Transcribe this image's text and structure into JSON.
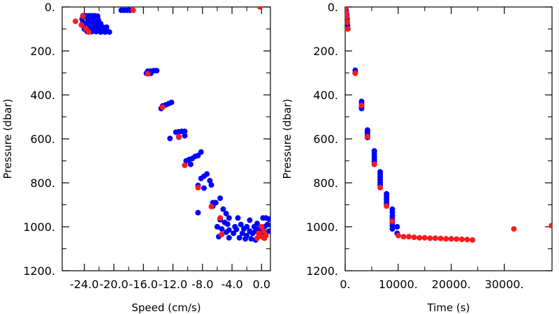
{
  "colors": {
    "blue": "#0000ff",
    "red": "#ff1a1a",
    "axis": "#000000"
  },
  "chart_data": [
    {
      "type": "scatter",
      "title": "",
      "xlabel": "Speed (cm/s)",
      "ylabel": "Pressure (dbar)",
      "xlim": [
        -27.0,
        1.2
      ],
      "ylim": [
        1200,
        0
      ],
      "y_inverted": true,
      "xticks": [
        "-24.0",
        "-20.0",
        "-16.0",
        "-12.0",
        "-8.0",
        "-4.0",
        "0.0"
      ],
      "xtick_values": [
        -24,
        -20,
        -16,
        -12,
        -8,
        -4,
        0
      ],
      "yticks": [
        "0.",
        "200.",
        "400.",
        "600.",
        "800.",
        "1000.",
        "1200."
      ],
      "ytick_values": [
        0,
        200,
        400,
        600,
        800,
        1000,
        1200
      ],
      "grid": false,
      "series": [
        {
          "color": "blue",
          "points": [
            [
              -24.2,
              40
            ],
            [
              -23.8,
              40
            ],
            [
              -23.4,
              40
            ],
            [
              -23.0,
              40
            ],
            [
              -22.6,
              40
            ],
            [
              -22.2,
              42
            ],
            [
              -24.3,
              55
            ],
            [
              -23.5,
              55
            ],
            [
              -22.8,
              58
            ],
            [
              -22.1,
              60
            ],
            [
              -24.2,
              70
            ],
            [
              -23.6,
              72
            ],
            [
              -23.0,
              72
            ],
            [
              -22.4,
              74
            ],
            [
              -21.8,
              76
            ],
            [
              -24.0,
              85
            ],
            [
              -23.4,
              86
            ],
            [
              -22.8,
              88
            ],
            [
              -22.2,
              90
            ],
            [
              -21.6,
              90
            ],
            [
              -21.0,
              92
            ],
            [
              -24.0,
              100
            ],
            [
              -23.4,
              100
            ],
            [
              -22.8,
              102
            ],
            [
              -22.2,
              104
            ],
            [
              -21.6,
              105
            ],
            [
              -21.0,
              106
            ],
            [
              -23.6,
              112
            ],
            [
              -23.0,
              112
            ],
            [
              -22.4,
              112
            ],
            [
              -21.8,
              114
            ],
            [
              -21.2,
              114
            ],
            [
              -20.6,
              114
            ],
            [
              -19.0,
              15
            ],
            [
              -18.6,
              15
            ],
            [
              -18.2,
              15
            ],
            [
              -17.8,
              15
            ],
            [
              -17.4,
              15
            ],
            [
              -15.4,
              292
            ],
            [
              -15.0,
              292
            ],
            [
              -14.6,
              290
            ],
            [
              -14.2,
              290
            ],
            [
              -15.6,
              302
            ],
            [
              -15.0,
              302
            ],
            [
              -13.4,
              450
            ],
            [
              -13.0,
              446
            ],
            [
              -12.6,
              440
            ],
            [
              -12.2,
              434
            ],
            [
              -13.6,
              462
            ],
            [
              -11.6,
              570
            ],
            [
              -11.2,
              568
            ],
            [
              -10.8,
              566
            ],
            [
              -10.4,
              566
            ],
            [
              -12.4,
              598
            ],
            [
              -11.2,
              592
            ],
            [
              -10.4,
              586
            ],
            [
              -10.2,
              700
            ],
            [
              -9.8,
              694
            ],
            [
              -9.4,
              690
            ],
            [
              -9.0,
              680
            ],
            [
              -8.6,
              676
            ],
            [
              -8.2,
              660
            ],
            [
              -9.6,
              716
            ],
            [
              -10.4,
              720
            ],
            [
              -8.2,
              780
            ],
            [
              -7.8,
              770
            ],
            [
              -7.4,
              760
            ],
            [
              -7.0,
              790
            ],
            [
              -6.8,
              810
            ],
            [
              -8.6,
              812
            ],
            [
              -7.8,
              824
            ],
            [
              -8.6,
              936
            ],
            [
              -6.6,
              890
            ],
            [
              -6.2,
              890
            ],
            [
              -6.6,
              906
            ],
            [
              -5.6,
              870
            ],
            [
              -5.2,
              920
            ],
            [
              -4.8,
              940
            ],
            [
              -4.4,
              960
            ],
            [
              -5.6,
              968
            ],
            [
              -5.0,
              980
            ],
            [
              -4.6,
              988
            ],
            [
              -6.0,
              1000
            ],
            [
              -5.4,
              1010
            ],
            [
              -4.4,
              1015
            ],
            [
              -3.6,
              1000
            ],
            [
              -3.2,
              960
            ],
            [
              -2.8,
              990
            ],
            [
              -2.4,
              1010
            ],
            [
              -2.0,
              1000
            ],
            [
              -1.6,
              1020
            ],
            [
              -5.8,
              1045
            ],
            [
              -3.0,
              1050
            ],
            [
              -2.0,
              1040
            ],
            [
              -1.2,
              1030
            ],
            [
              -0.8,
              1020
            ],
            [
              -0.4,
              1010
            ],
            [
              0.0,
              1020
            ],
            [
              0.4,
              1000
            ],
            [
              0.8,
              990
            ],
            [
              1.0,
              1020
            ],
            [
              -0.6,
              985
            ],
            [
              0.2,
              960
            ],
            [
              0.6,
              960
            ],
            [
              1.0,
              965
            ],
            [
              -1.6,
              970
            ],
            [
              -1.0,
              1000
            ],
            [
              -0.2,
              1040
            ],
            [
              0.4,
              1040
            ],
            [
              -2.6,
              1030
            ],
            [
              -3.8,
              1030
            ],
            [
              -4.4,
              1050
            ],
            [
              -1.4,
              1055
            ],
            [
              -0.8,
              1060
            ],
            [
              -2.2,
              1055
            ],
            [
              -3.4,
              1012
            ],
            [
              -4.8,
              1025
            ]
          ]
        },
        {
          "color": "red",
          "points": [
            [
              -24.2,
              42
            ],
            [
              -25.2,
              65
            ],
            [
              -24.4,
              82
            ],
            [
              -23.8,
              98
            ],
            [
              -23.4,
              114
            ],
            [
              -17.4,
              15
            ],
            [
              -0.2,
              0
            ],
            [
              -15.4,
              304
            ],
            [
              -13.4,
              456
            ],
            [
              -11.2,
              590
            ],
            [
              -10.4,
              720
            ],
            [
              -8.6,
              822
            ],
            [
              -6.8,
              908
            ],
            [
              -5.6,
              960
            ],
            [
              -5.4,
              1035
            ],
            [
              0.0,
              1000
            ],
            [
              0.3,
              1020
            ],
            [
              -0.4,
              1030
            ],
            [
              -0.2,
              1042
            ],
            [
              0.2,
              1048
            ],
            [
              -0.6,
              1052
            ],
            [
              0.4,
              1052
            ],
            [
              0.6,
              1040
            ]
          ]
        }
      ]
    },
    {
      "type": "scatter",
      "title": "",
      "xlabel": "Time (s)",
      "ylabel": "Pressure (dbar)",
      "xlim": [
        0,
        39000
      ],
      "ylim": [
        1200,
        0
      ],
      "y_inverted": true,
      "xticks": [
        "0.",
        "10000.",
        "20000.",
        "30000."
      ],
      "xtick_values": [
        0,
        10000,
        20000,
        30000
      ],
      "yticks": [
        "0.",
        "200.",
        "400.",
        "600.",
        "800.",
        "1000.",
        "1200."
      ],
      "ytick_values": [
        0,
        200,
        400,
        600,
        800,
        1000,
        1200
      ],
      "grid": false,
      "series": [
        {
          "color": "blue",
          "points": [
            [
              100,
              0
            ],
            [
              150,
              10
            ],
            [
              200,
              20
            ],
            [
              250,
              30
            ],
            [
              300,
              40
            ],
            [
              350,
              55
            ],
            [
              400,
              70
            ],
            [
              450,
              85
            ],
            [
              500,
              100
            ],
            [
              1900,
              288
            ],
            [
              1900,
              300
            ],
            [
              3100,
              430
            ],
            [
              3100,
              440
            ],
            [
              3100,
              452
            ],
            [
              3100,
              462
            ],
            [
              4200,
              560
            ],
            [
              4200,
              570
            ],
            [
              4200,
              582
            ],
            [
              4200,
              594
            ],
            [
              5500,
              655
            ],
            [
              5500,
              668
            ],
            [
              5500,
              680
            ],
            [
              5500,
              692
            ],
            [
              5500,
              704
            ],
            [
              5500,
              716
            ],
            [
              6600,
              750
            ],
            [
              6600,
              762
            ],
            [
              6600,
              774
            ],
            [
              6600,
              786
            ],
            [
              6600,
              798
            ],
            [
              6600,
              810
            ],
            [
              7800,
              850
            ],
            [
              7800,
              862
            ],
            [
              7800,
              874
            ],
            [
              7800,
              886
            ],
            [
              7800,
              898
            ],
            [
              8900,
              920
            ],
            [
              8900,
              935
            ],
            [
              8900,
              950
            ],
            [
              8900,
              965
            ],
            [
              8900,
              980
            ],
            [
              8900,
              995
            ],
            [
              8900,
              1010
            ],
            [
              9800,
              1000
            ],
            [
              9800,
              1030
            ]
          ]
        },
        {
          "color": "red",
          "points": [
            [
              100,
              5
            ],
            [
              200,
              25
            ],
            [
              300,
              45
            ],
            [
              400,
              70
            ],
            [
              500,
              100
            ],
            [
              1900,
              302
            ],
            [
              3100,
              448
            ],
            [
              4200,
              590
            ],
            [
              5500,
              715
            ],
            [
              6600,
              822
            ],
            [
              7800,
              906
            ],
            [
              8900,
              975
            ],
            [
              10000,
              1040
            ],
            [
              11000,
              1045
            ],
            [
              12000,
              1045
            ],
            [
              13000,
              1048
            ],
            [
              14000,
              1050
            ],
            [
              15000,
              1050
            ],
            [
              16000,
              1052
            ],
            [
              17000,
              1052
            ],
            [
              18000,
              1053
            ],
            [
              19000,
              1055
            ],
            [
              20000,
              1055
            ],
            [
              21000,
              1056
            ],
            [
              22000,
              1057
            ],
            [
              23000,
              1058
            ],
            [
              24000,
              1060
            ],
            [
              31800,
              1010
            ],
            [
              38900,
              995
            ]
          ]
        }
      ]
    }
  ]
}
